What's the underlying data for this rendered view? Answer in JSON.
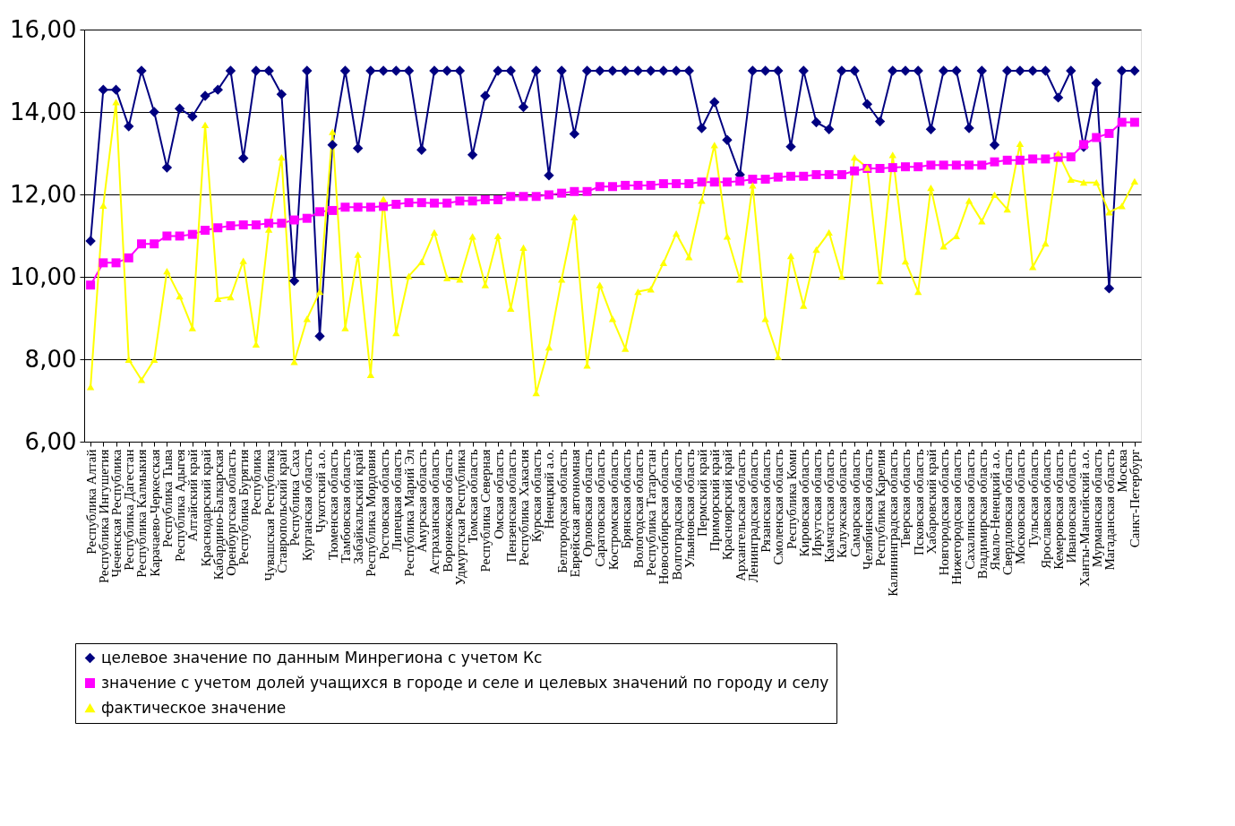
{
  "chart_data": {
    "type": "line",
    "categories": [
      "Республика Алтай",
      "Республика Ингушетия",
      "Чеченская Республика",
      "Республика Дагестан",
      "Республика Калмыкия",
      "Карачаево-Черкесская",
      "Республика Тыва",
      "Республика Адыгея",
      "Алтайский край",
      "Краснодарский край",
      "Кабардино-Балкарская",
      "Оренбургская область",
      "Республика Бурятия",
      "Республика",
      "Чувашская Республика",
      "Ставропольский край",
      "Республика Саха",
      "Курганская область",
      "Чукотский а.о.",
      "Тюменская область",
      "Тамбовская область",
      "Забайкальский край",
      "Республика Мордовия",
      "Ростовская область",
      "Липецкая область",
      "Республика Марий Эл",
      "Амурская область",
      "Астраханская область",
      "Воронежская область",
      "Удмуртская Республика",
      "Томская область",
      "Республика Северная",
      "Омская область",
      "Пензенская область",
      "Республика Хакасия",
      "Курская область",
      "Ненецкий а.о.",
      "Белгородская область",
      "Еврейская автономная",
      "Орловская область",
      "Саратовская область",
      "Костромская область",
      "Брянская область",
      "Вологодская область",
      "Республика Татарстан",
      "Новосибирская область",
      "Волгоградская область",
      "Ульяновская область",
      "Пермский край",
      "Приморский край",
      "Красноярский край",
      "Архангельская область",
      "Ленинградская область",
      "Рязанская область",
      "Смоленская область",
      "Республика Коми",
      "Кировская область",
      "Иркутская область",
      "Камчатская область",
      "Калужская область",
      "Самарская область",
      "Челябинская область",
      "Республика Карелия",
      "Калининградская область",
      "Тверская область",
      "Псковская область",
      "Хабаровский край",
      "Новгородская область",
      "Нижегородская область",
      "Сахалинская область",
      "Владимирская область",
      "Ямало-Ненецкий а.о.",
      "Свердловская область",
      "Московская область",
      "Тульская область",
      "Ярославская область",
      "Кемеровская область",
      "Ивановская область",
      "Ханты-Мансийский а.о.",
      "Мурманская область",
      "Магаданская область",
      "Москва",
      "Санкт-Петербург"
    ],
    "series": [
      {
        "name": "целевое значение по данным Минрегиона с учетом Кс",
        "color": "#000080",
        "marker": "diamond",
        "values": [
          10.87,
          14.54,
          14.54,
          13.65,
          15,
          14.0,
          12.65,
          14.08,
          13.89,
          14.39,
          14.54,
          15,
          12.88,
          15,
          15,
          14.43,
          9.9,
          15,
          8.56,
          13.2,
          15,
          13.12,
          15,
          15,
          15,
          15,
          13.08,
          15,
          15,
          15,
          12.96,
          14.39,
          15,
          15,
          14.12,
          15,
          12.46,
          15,
          13.47,
          15,
          15,
          15,
          15,
          15,
          15,
          15,
          15,
          15,
          13.61,
          14.24,
          13.32,
          12.48,
          15,
          15,
          15,
          13.16,
          15,
          13.75,
          13.58,
          15,
          15,
          14.19,
          13.77,
          15,
          15,
          15,
          13.58,
          15,
          15,
          13.61,
          15,
          13.2,
          15,
          15,
          15,
          15,
          14.35,
          15,
          13.15,
          14.7,
          9.72,
          15,
          15
        ]
      },
      {
        "name": "значение с учетом долей учащихся в городе и селе и целевых значений по городу и селу",
        "color": "#ff00ff",
        "marker": "square",
        "values": [
          9.8,
          10.34,
          10.34,
          10.46,
          10.8,
          10.8,
          10.99,
          10.99,
          11.03,
          11.13,
          11.19,
          11.24,
          11.26,
          11.26,
          11.3,
          11.3,
          11.38,
          11.42,
          11.58,
          11.61,
          11.69,
          11.69,
          11.69,
          11.71,
          11.76,
          11.8,
          11.8,
          11.79,
          11.79,
          11.84,
          11.84,
          11.87,
          11.87,
          11.95,
          11.95,
          11.95,
          11.99,
          12.03,
          12.07,
          12.07,
          12.19,
          12.19,
          12.22,
          12.22,
          12.22,
          12.26,
          12.26,
          12.26,
          12.3,
          12.3,
          12.3,
          12.32,
          12.37,
          12.37,
          12.42,
          12.44,
          12.44,
          12.48,
          12.48,
          12.48,
          12.57,
          12.63,
          12.63,
          12.65,
          12.67,
          12.67,
          12.71,
          12.71,
          12.71,
          12.71,
          12.71,
          12.79,
          12.83,
          12.83,
          12.86,
          12.86,
          12.9,
          12.91,
          13.21,
          13.38,
          13.48,
          13.75,
          13.75
        ]
      },
      {
        "name": "фактическое значение",
        "color": "#ffff00",
        "marker": "triangle",
        "values": [
          7.33,
          11.73,
          14.24,
          7.99,
          7.5,
          7.99,
          10.14,
          9.53,
          8.76,
          13.69,
          9.47,
          9.51,
          10.39,
          8.36,
          11.15,
          12.9,
          7.94,
          8.98,
          9.64,
          13.52,
          8.76,
          10.54,
          7.62,
          11.89,
          8.64,
          10.02,
          10.36,
          11.08,
          9.97,
          9.94,
          10.98,
          9.8,
          10.99,
          9.23,
          10.71,
          7.18,
          8.29,
          9.94,
          11.45,
          7.85,
          9.8,
          8.98,
          8.26,
          9.64,
          9.7,
          10.34,
          11.05,
          10.48,
          11.85,
          13.2,
          10.98,
          9.94,
          12.22,
          8.98,
          8.06,
          10.51,
          9.3,
          10.66,
          11.08,
          10.01,
          12.9,
          12.65,
          9.9,
          12.96,
          10.38,
          9.64,
          12.16,
          10.74,
          10.99,
          11.85,
          11.35,
          11.99,
          11.64,
          13.23,
          10.24,
          10.81,
          13.0,
          12.36,
          12.29,
          12.29,
          11.57,
          11.72,
          12.32
        ]
      }
    ],
    "ylim": [
      6,
      16
    ],
    "yticks": [
      {
        "value": 6,
        "label": "6,00"
      },
      {
        "value": 8,
        "label": "8,00"
      },
      {
        "value": 10,
        "label": "10,00"
      },
      {
        "value": 12,
        "label": "12,00"
      },
      {
        "value": 14,
        "label": "14,00"
      },
      {
        "value": 16,
        "label": "16,00"
      }
    ],
    "grid": "y",
    "legend": "bottom",
    "line_style": "solid"
  }
}
